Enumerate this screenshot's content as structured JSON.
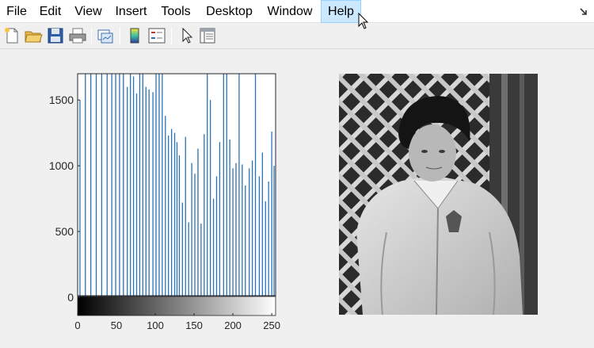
{
  "menubar": {
    "items": [
      {
        "id": "file",
        "label": "File"
      },
      {
        "id": "edit",
        "label": "Edit"
      },
      {
        "id": "view",
        "label": "View"
      },
      {
        "id": "insert",
        "label": "Insert"
      },
      {
        "id": "tools",
        "label": "Tools"
      },
      {
        "id": "desktop",
        "label": "Desktop"
      },
      {
        "id": "window",
        "label": "Window"
      },
      {
        "id": "help",
        "label": "Help"
      }
    ],
    "restore_icon": "restore-arrow-icon"
  },
  "toolbar": {
    "buttons": [
      {
        "name": "new-figure-button",
        "icon": "new-file-icon"
      },
      {
        "name": "open-file-button",
        "icon": "open-folder-icon"
      },
      {
        "name": "save-figure-button",
        "icon": "save-disk-icon"
      },
      {
        "name": "print-figure-button",
        "icon": "printer-icon"
      },
      {
        "name": "link-plot-button",
        "icon": "link-plot-icon"
      },
      {
        "name": "insert-colorbar-button",
        "icon": "colorbar-icon"
      },
      {
        "name": "insert-legend-button",
        "icon": "legend-icon"
      },
      {
        "name": "edit-plot-button",
        "icon": "pointer-arrow-icon"
      },
      {
        "name": "property-inspector-button",
        "icon": "property-panel-icon"
      }
    ]
  },
  "colors": {
    "bar": "#2a73b6",
    "hover_bg": "#cce8ff",
    "hover_border": "#99d1ff",
    "axes_bg": "#ffffff",
    "figure_bg": "#f0f0f0"
  },
  "chart_data": {
    "type": "bar",
    "x_ticks": [
      "0",
      "50",
      "100",
      "150",
      "200",
      "250"
    ],
    "y_ticks": [
      "0",
      "500",
      "1000",
      "1500"
    ],
    "xlim": [
      0,
      255
    ],
    "ylim": [
      0,
      1700
    ],
    "colorbar": "gray",
    "x": [
      3,
      10,
      17,
      24,
      31,
      38,
      44,
      49,
      54,
      59,
      64,
      68,
      72,
      76,
      80,
      84,
      88,
      92,
      97,
      101,
      105,
      109,
      113,
      117,
      121,
      125,
      128,
      131,
      135,
      139,
      143,
      147,
      151,
      155,
      159,
      163,
      167,
      171,
      175,
      179,
      183,
      188,
      192,
      196,
      200,
      204,
      208,
      212,
      216,
      221,
      225,
      229,
      234,
      238,
      242,
      246,
      250,
      253
    ],
    "values": [
      1500,
      1700,
      1700,
      1700,
      1700,
      1700,
      1700,
      1700,
      1700,
      1700,
      1600,
      1700,
      1680,
      1550,
      1700,
      1700,
      1600,
      1580,
      1560,
      1700,
      1700,
      1700,
      1380,
      1230,
      1280,
      1250,
      1180,
      1080,
      720,
      1220,
      570,
      1020,
      940,
      1130,
      560,
      1240,
      1700,
      1500,
      750,
      920,
      1180,
      1700,
      1700,
      1200,
      980,
      1020,
      1700,
      1010,
      850,
      980,
      1040,
      1700,
      920,
      1100,
      730,
      880,
      1260,
      1000
    ]
  },
  "image_panel": {
    "description_icon": "grayscale-photo-image"
  }
}
